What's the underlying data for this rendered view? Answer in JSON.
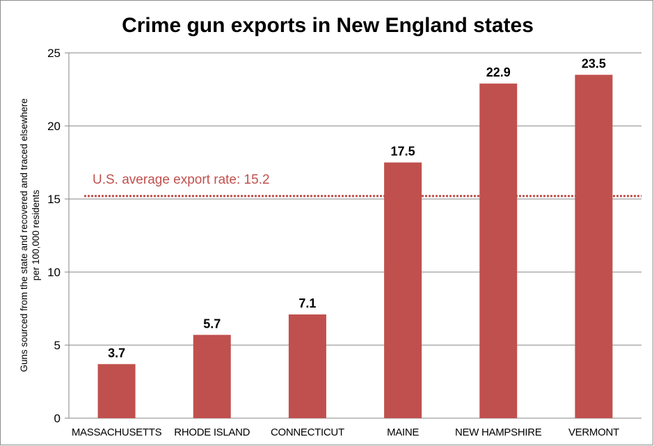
{
  "chart_data": {
    "type": "bar",
    "title": "Crime gun exports in New England states",
    "categories": [
      "MASSACHUSETTS",
      "RHODE ISLAND",
      "CONNECTICUT",
      "MAINE",
      "NEW HAMPSHIRE",
      "VERMONT"
    ],
    "values": [
      3.7,
      5.7,
      7.1,
      17.5,
      22.9,
      23.5
    ],
    "value_labels": [
      "3.7",
      "5.7",
      "7.1",
      "17.5",
      "22.9",
      "23.5"
    ],
    "xlabel": "",
    "ylabel_lines": [
      "Guns sourced from the state and recovered and traced elsewhere",
      "per 100,000 residents"
    ],
    "ylim": [
      0,
      25
    ],
    "yticks": [
      0,
      5,
      10,
      15,
      20,
      25
    ],
    "grid": true,
    "legend": "none",
    "reference_line": {
      "value": 15.2,
      "label": "U.S. average export rate: 15.2",
      "style": "dotted"
    }
  },
  "colors": {
    "bar": "#c0504d",
    "reference": "#c0504d",
    "grid": "#868686",
    "axis": "#868686",
    "text": "#000000"
  }
}
